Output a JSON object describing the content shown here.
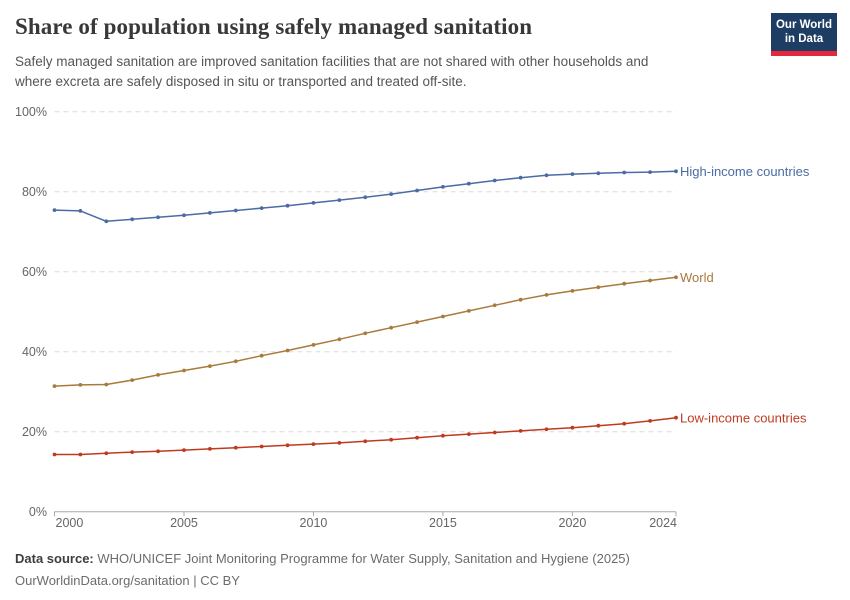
{
  "header": {
    "title": "Share of population using safely managed sanitation",
    "subtitle_line1": "Safely managed sanitation are improved sanitation facilities that are not shared with other households and",
    "subtitle_line2": "where excreta are safely disposed in situ or transported and treated off-site.",
    "logo": {
      "line1": "Our World",
      "line2": "in Data",
      "bg_color": "#1d3d63",
      "accent_color": "#e5273e"
    }
  },
  "chart_data": {
    "type": "line",
    "title": "Share of population using safely managed sanitation",
    "xlabel": "",
    "ylabel": "",
    "ylim": [
      0,
      100
    ],
    "yticks": [
      0,
      20,
      40,
      60,
      80,
      100
    ],
    "ytick_suffix": "%",
    "xticks": [
      2000,
      2005,
      2010,
      2015,
      2020,
      2024
    ],
    "grid": "horizontal-dashed",
    "legend_position": "right-edge-labels",
    "x": [
      2000,
      2001,
      2002,
      2003,
      2004,
      2005,
      2006,
      2007,
      2008,
      2009,
      2010,
      2011,
      2012,
      2013,
      2014,
      2015,
      2016,
      2017,
      2018,
      2019,
      2020,
      2021,
      2022,
      2023,
      2024
    ],
    "series": [
      {
        "name": "High-income countries",
        "color": "#4a6ba3",
        "values": [
          75.4,
          75.2,
          72.6,
          73.1,
          73.6,
          74.1,
          74.7,
          75.3,
          75.9,
          76.5,
          77.2,
          77.9,
          78.6,
          79.4,
          80.3,
          81.2,
          82.0,
          82.8,
          83.5,
          84.1,
          84.4,
          84.6,
          84.8,
          84.9,
          85.1
        ]
      },
      {
        "name": "World",
        "color": "#a97a3c",
        "values": [
          31.4,
          31.7,
          31.8,
          32.9,
          34.2,
          35.3,
          36.4,
          37.6,
          39.0,
          40.3,
          41.7,
          43.1,
          44.6,
          46.0,
          47.4,
          48.8,
          50.2,
          51.6,
          53.0,
          54.2,
          55.2,
          56.1,
          57.0,
          57.8,
          58.6
        ]
      },
      {
        "name": "Low-income countries",
        "color": "#bf3b1f",
        "values": [
          14.3,
          14.3,
          14.6,
          14.9,
          15.1,
          15.4,
          15.7,
          16.0,
          16.3,
          16.6,
          16.9,
          17.2,
          17.6,
          18.0,
          18.5,
          19.0,
          19.4,
          19.8,
          20.2,
          20.6,
          21.0,
          21.5,
          22.0,
          22.7,
          23.5
        ]
      }
    ]
  },
  "axis_colors": {
    "grid": "#dcdcdc",
    "baseline": "#a8a8a8",
    "tick_label": "#666666"
  },
  "footer": {
    "source_label": "Data source:",
    "source_text": " WHO/UNICEF Joint Monitoring Programme for Water Supply, Sanitation and Hygiene (2025)",
    "attribution": "OurWorldinData.org/sanitation | CC BY"
  }
}
